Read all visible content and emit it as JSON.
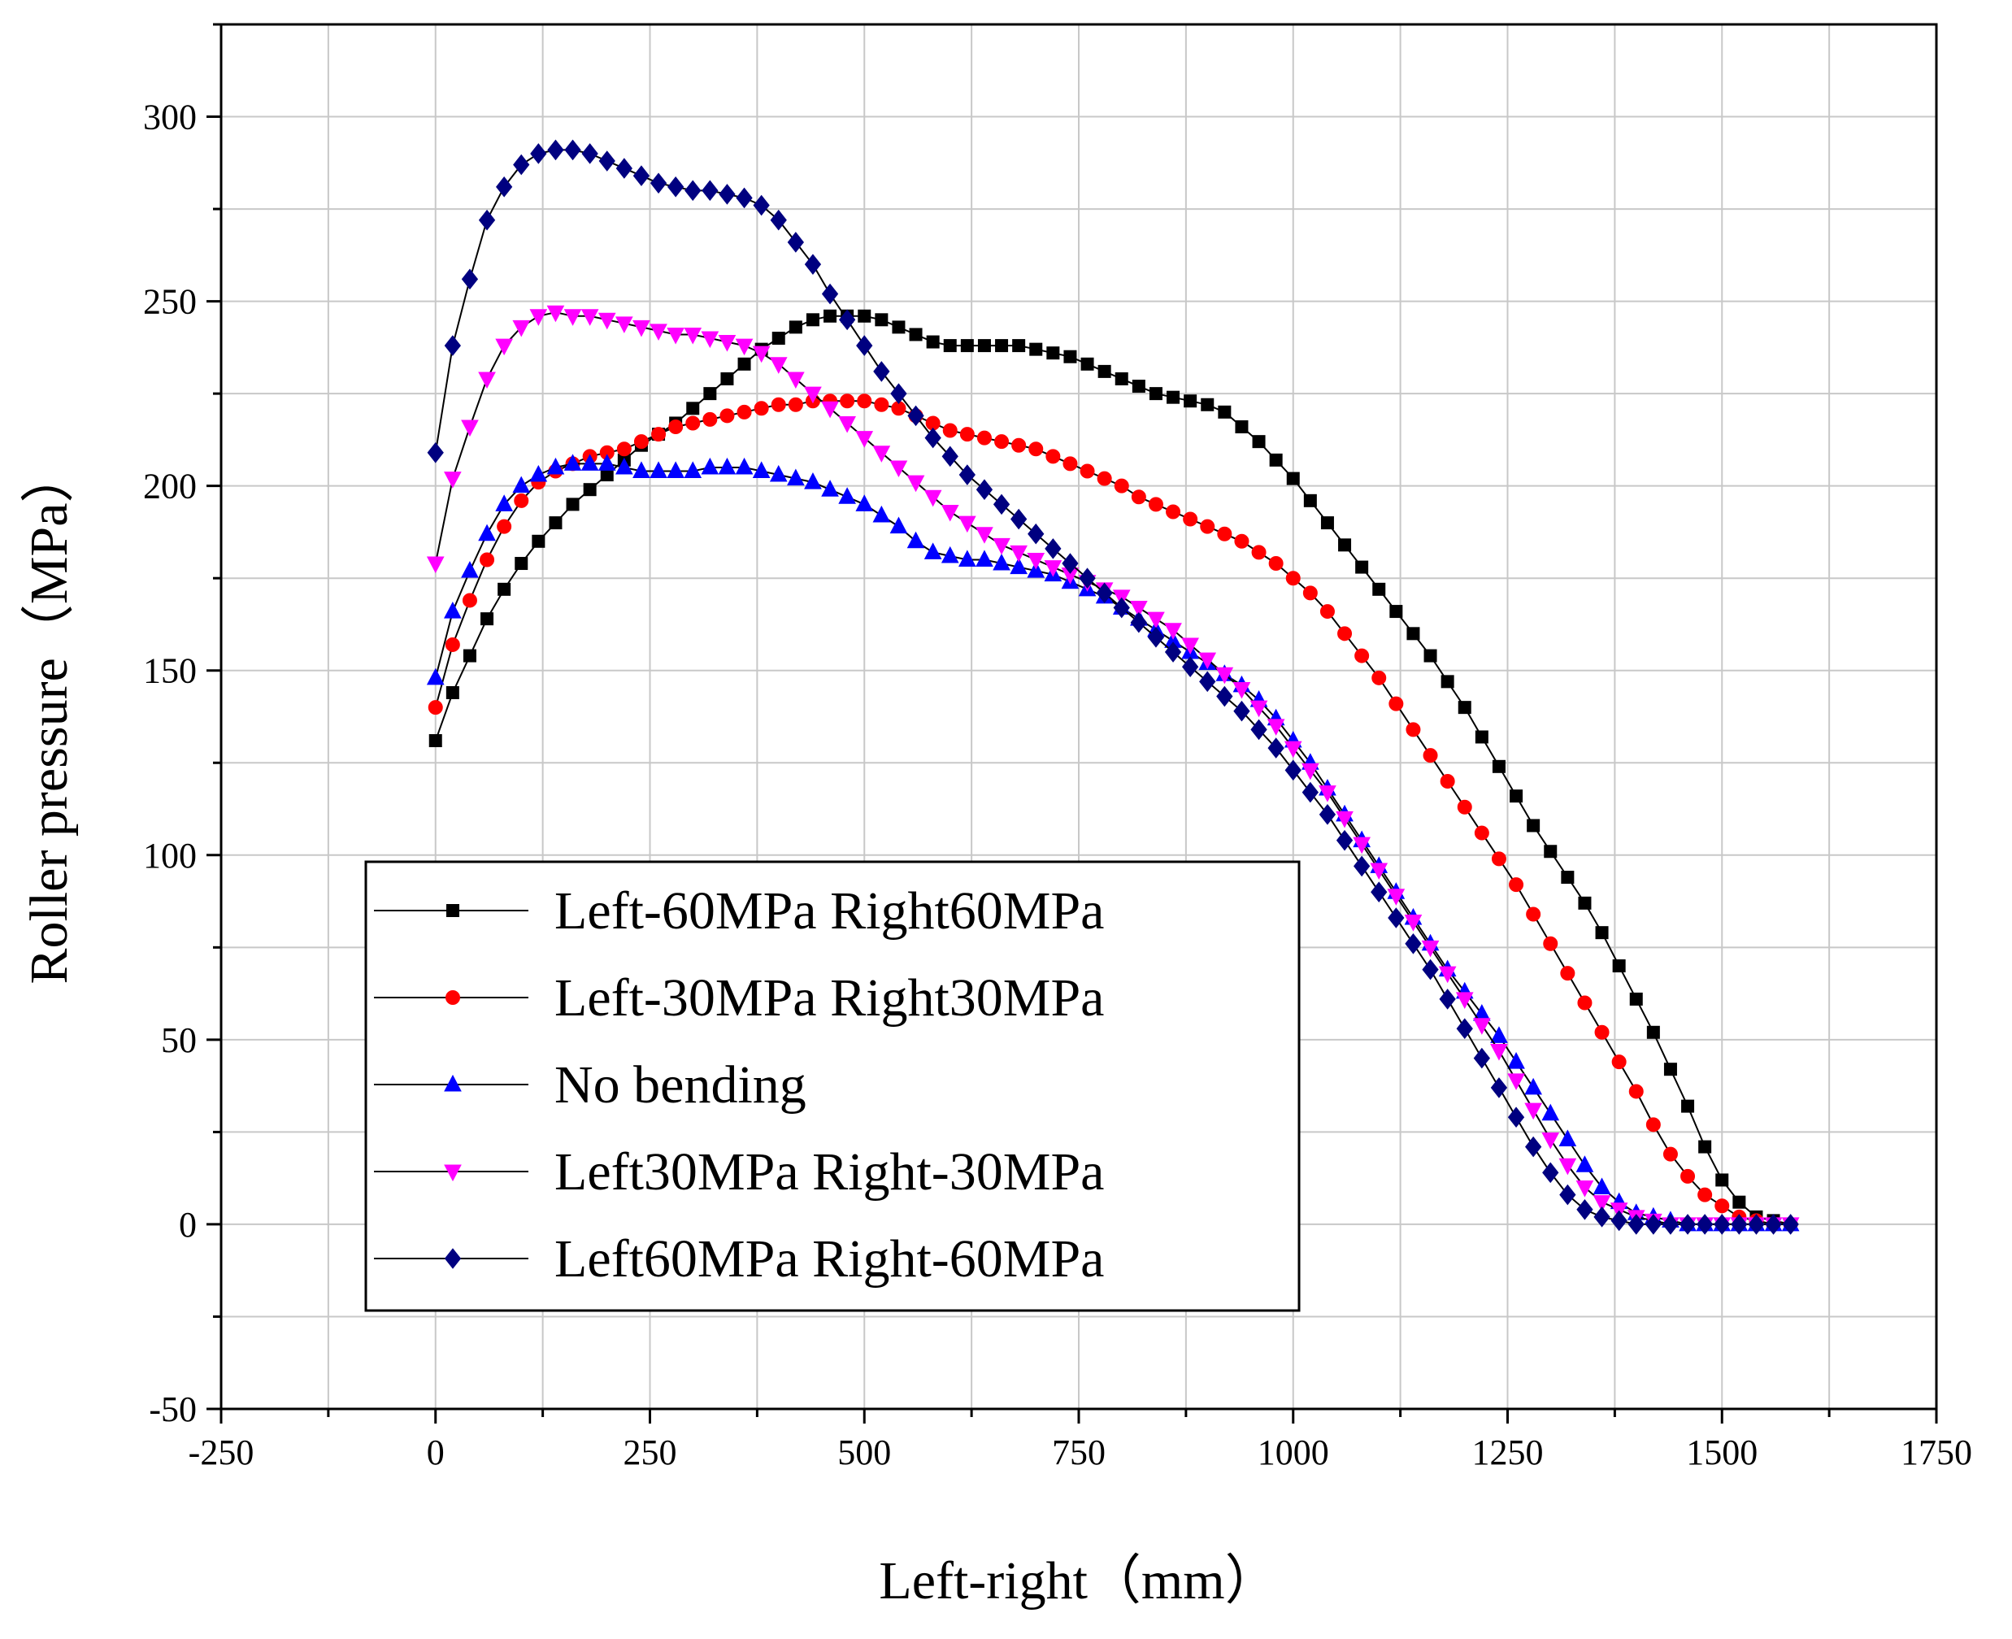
{
  "chart_data": {
    "type": "line",
    "title": "",
    "xlabel": "Left-right（mm）",
    "ylabel": "Roller pressure（MPa）",
    "xlim": [
      -250,
      1750
    ],
    "ylim": [
      -50,
      325
    ],
    "xticks": [
      -250,
      0,
      250,
      500,
      750,
      1000,
      1250,
      1500,
      1750
    ],
    "yticks": [
      -50,
      0,
      50,
      100,
      150,
      200,
      250,
      300
    ],
    "xtick_labels": [
      "-250",
      "0",
      "250",
      "500",
      "750",
      "1000",
      "1250",
      "1500",
      "1750"
    ],
    "ytick_labels": [
      "-50",
      "0",
      "50",
      "100",
      "150",
      "200",
      "250",
      "300"
    ],
    "grid": true,
    "legend_position": "bottom-left",
    "series": [
      {
        "name": "Left-60MPa Right60MPa",
        "color": "#000000",
        "marker": "square",
        "x": [
          0,
          20,
          40,
          60,
          80,
          100,
          120,
          140,
          160,
          180,
          200,
          220,
          240,
          260,
          280,
          300,
          320,
          340,
          360,
          380,
          400,
          420,
          440,
          460,
          480,
          500,
          520,
          540,
          560,
          580,
          600,
          620,
          640,
          660,
          680,
          700,
          720,
          740,
          760,
          780,
          800,
          820,
          840,
          860,
          880,
          900,
          920,
          940,
          960,
          980,
          1000,
          1020,
          1040,
          1060,
          1080,
          1100,
          1120,
          1140,
          1160,
          1180,
          1200,
          1220,
          1240,
          1260,
          1280,
          1300,
          1320,
          1340,
          1360,
          1380,
          1400,
          1420,
          1440,
          1460,
          1480,
          1500,
          1520,
          1540,
          1560,
          1580
        ],
        "y": [
          131,
          144,
          154,
          164,
          172,
          179,
          185,
          190,
          195,
          199,
          203,
          207,
          211,
          214,
          217,
          221,
          225,
          229,
          233,
          237,
          240,
          243,
          245,
          246,
          246,
          246,
          245,
          243,
          241,
          239,
          238,
          238,
          238,
          238,
          238,
          237,
          236,
          235,
          233,
          231,
          229,
          227,
          225,
          224,
          223,
          222,
          220,
          216,
          212,
          207,
          202,
          196,
          190,
          184,
          178,
          172,
          166,
          160,
          154,
          147,
          140,
          132,
          124,
          116,
          108,
          101,
          94,
          87,
          79,
          70,
          61,
          52,
          42,
          32,
          21,
          12,
          6,
          2,
          1,
          0
        ]
      },
      {
        "name": "Left-30MPa Right30MPa",
        "color": "#ff0000",
        "marker": "circle",
        "x": [
          0,
          20,
          40,
          60,
          80,
          100,
          120,
          140,
          160,
          180,
          200,
          220,
          240,
          260,
          280,
          300,
          320,
          340,
          360,
          380,
          400,
          420,
          440,
          460,
          480,
          500,
          520,
          540,
          560,
          580,
          600,
          620,
          640,
          660,
          680,
          700,
          720,
          740,
          760,
          780,
          800,
          820,
          840,
          860,
          880,
          900,
          920,
          940,
          960,
          980,
          1000,
          1020,
          1040,
          1060,
          1080,
          1100,
          1120,
          1140,
          1160,
          1180,
          1200,
          1220,
          1240,
          1260,
          1280,
          1300,
          1320,
          1340,
          1360,
          1380,
          1400,
          1420,
          1440,
          1460,
          1480,
          1500,
          1520,
          1540,
          1560,
          1580
        ],
        "y": [
          140,
          157,
          169,
          180,
          189,
          196,
          201,
          204,
          206,
          208,
          209,
          210,
          212,
          214,
          216,
          217,
          218,
          219,
          220,
          221,
          222,
          222,
          223,
          223,
          223,
          223,
          222,
          221,
          219,
          217,
          215,
          214,
          213,
          212,
          211,
          210,
          208,
          206,
          204,
          202,
          200,
          197,
          195,
          193,
          191,
          189,
          187,
          185,
          182,
          179,
          175,
          171,
          166,
          160,
          154,
          148,
          141,
          134,
          127,
          120,
          113,
          106,
          99,
          92,
          84,
          76,
          68,
          60,
          52,
          44,
          36,
          27,
          19,
          13,
          8,
          5,
          2,
          1,
          0,
          0
        ]
      },
      {
        "name": "No bending",
        "color": "#0000ff",
        "marker": "triangle-up",
        "x": [
          0,
          20,
          40,
          60,
          80,
          100,
          120,
          140,
          160,
          180,
          200,
          220,
          240,
          260,
          280,
          300,
          320,
          340,
          360,
          380,
          400,
          420,
          440,
          460,
          480,
          500,
          520,
          540,
          560,
          580,
          600,
          620,
          640,
          660,
          680,
          700,
          720,
          740,
          760,
          780,
          800,
          820,
          840,
          860,
          880,
          900,
          920,
          940,
          960,
          980,
          1000,
          1020,
          1040,
          1060,
          1080,
          1100,
          1120,
          1140,
          1160,
          1180,
          1200,
          1220,
          1240,
          1260,
          1280,
          1300,
          1320,
          1340,
          1360,
          1380,
          1400,
          1420,
          1440,
          1460,
          1480,
          1500,
          1520,
          1540,
          1560,
          1580
        ],
        "y": [
          148,
          166,
          177,
          187,
          195,
          200,
          203,
          205,
          206,
          206,
          206,
          205,
          204,
          204,
          204,
          204,
          205,
          205,
          205,
          204,
          203,
          202,
          201,
          199,
          197,
          195,
          192,
          189,
          185,
          182,
          181,
          180,
          180,
          179,
          178,
          177,
          176,
          174,
          172,
          170,
          167,
          164,
          161,
          158,
          155,
          152,
          149,
          146,
          142,
          137,
          131,
          125,
          118,
          111,
          104,
          97,
          90,
          83,
          76,
          69,
          63,
          57,
          51,
          44,
          37,
          30,
          23,
          16,
          10,
          6,
          3,
          2,
          1,
          0,
          0,
          0,
          0,
          0,
          0,
          0
        ]
      },
      {
        "name": "Left30MPa Right-30MPa",
        "color": "#ff00ff",
        "marker": "triangle-down",
        "x": [
          0,
          20,
          40,
          60,
          80,
          100,
          120,
          140,
          160,
          180,
          200,
          220,
          240,
          260,
          280,
          300,
          320,
          340,
          360,
          380,
          400,
          420,
          440,
          460,
          480,
          500,
          520,
          540,
          560,
          580,
          600,
          620,
          640,
          660,
          680,
          700,
          720,
          740,
          760,
          780,
          800,
          820,
          840,
          860,
          880,
          900,
          920,
          940,
          960,
          980,
          1000,
          1020,
          1040,
          1060,
          1080,
          1100,
          1120,
          1140,
          1160,
          1180,
          1200,
          1220,
          1240,
          1260,
          1280,
          1300,
          1320,
          1340,
          1360,
          1380,
          1400,
          1420,
          1440,
          1460,
          1480,
          1500,
          1520,
          1540,
          1560,
          1580
        ],
        "y": [
          179,
          202,
          216,
          229,
          238,
          243,
          246,
          247,
          246,
          246,
          245,
          244,
          243,
          242,
          241,
          241,
          240,
          239,
          238,
          236,
          233,
          229,
          225,
          221,
          217,
          213,
          209,
          205,
          201,
          197,
          193,
          190,
          187,
          184,
          182,
          180,
          178,
          176,
          174,
          172,
          170,
          167,
          164,
          161,
          157,
          153,
          149,
          145,
          140,
          135,
          129,
          123,
          117,
          110,
          103,
          96,
          89,
          82,
          75,
          68,
          61,
          54,
          47,
          39,
          31,
          23,
          16,
          10,
          6,
          4,
          2,
          1,
          0,
          0,
          0,
          0,
          0,
          0,
          0,
          0
        ]
      },
      {
        "name": "Left60MPa Right-60MPa",
        "color": "#000080",
        "marker": "diamond",
        "x": [
          0,
          20,
          40,
          60,
          80,
          100,
          120,
          140,
          160,
          180,
          200,
          220,
          240,
          260,
          280,
          300,
          320,
          340,
          360,
          380,
          400,
          420,
          440,
          460,
          480,
          500,
          520,
          540,
          560,
          580,
          600,
          620,
          640,
          660,
          680,
          700,
          720,
          740,
          760,
          780,
          800,
          820,
          840,
          860,
          880,
          900,
          920,
          940,
          960,
          980,
          1000,
          1020,
          1040,
          1060,
          1080,
          1100,
          1120,
          1140,
          1160,
          1180,
          1200,
          1220,
          1240,
          1260,
          1280,
          1300,
          1320,
          1340,
          1360,
          1380,
          1400,
          1420,
          1440,
          1460,
          1480,
          1500,
          1520,
          1540,
          1560,
          1580
        ],
        "y": [
          209,
          238,
          256,
          272,
          281,
          287,
          290,
          291,
          291,
          290,
          288,
          286,
          284,
          282,
          281,
          280,
          280,
          279,
          278,
          276,
          272,
          266,
          260,
          252,
          245,
          238,
          231,
          225,
          219,
          213,
          208,
          203,
          199,
          195,
          191,
          187,
          183,
          179,
          175,
          171,
          167,
          163,
          159,
          155,
          151,
          147,
          143,
          139,
          134,
          129,
          123,
          117,
          111,
          104,
          97,
          90,
          83,
          76,
          69,
          61,
          53,
          45,
          37,
          29,
          21,
          14,
          8,
          4,
          2,
          1,
          0,
          0,
          0,
          0,
          0,
          0,
          0,
          0,
          0,
          0
        ]
      }
    ]
  }
}
